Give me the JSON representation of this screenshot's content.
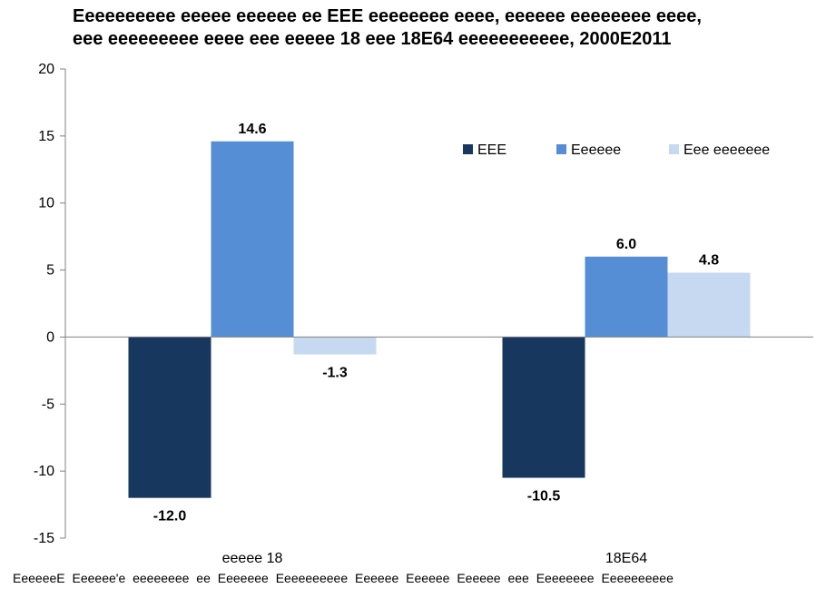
{
  "chart_data": {
    "type": "bar",
    "title_line1": "Eeeeeeeeee eeeee eeeeee ee EEE eeeeeeee eeee, eeeeee eeeeeeee eeee,",
    "title_line2": "eee eeeeeeeee eeee eee eeeee 18 eee 18E64 eeeeeeeeeee, 2000E2011",
    "categories": [
      "eeeee 18",
      "18E64"
    ],
    "series": [
      {
        "name": "EEE",
        "values": [
          -12.0,
          -10.5
        ],
        "color": "#17375e"
      },
      {
        "name": "Eeeeee",
        "values": [
          14.6,
          6.0
        ],
        "color": "#558ed5"
      },
      {
        "name": "Eee eeeeeee",
        "values": [
          -1.3,
          4.8
        ],
        "color": "#c6d9f1"
      }
    ],
    "ylim": [
      -15,
      20
    ],
    "yticks": [
      -15,
      -10,
      -5,
      0,
      5,
      10,
      15,
      20
    ],
    "legend_position": "top-right",
    "grid": false
  },
  "source_note": "EeeeeeE Eeeeee'e eeeeeeee ee Eeeeeee Eeeeeeeeee Eeeeee Eeeeee Eeeeee eee Eeeeeeee Eeeeeeeeee"
}
